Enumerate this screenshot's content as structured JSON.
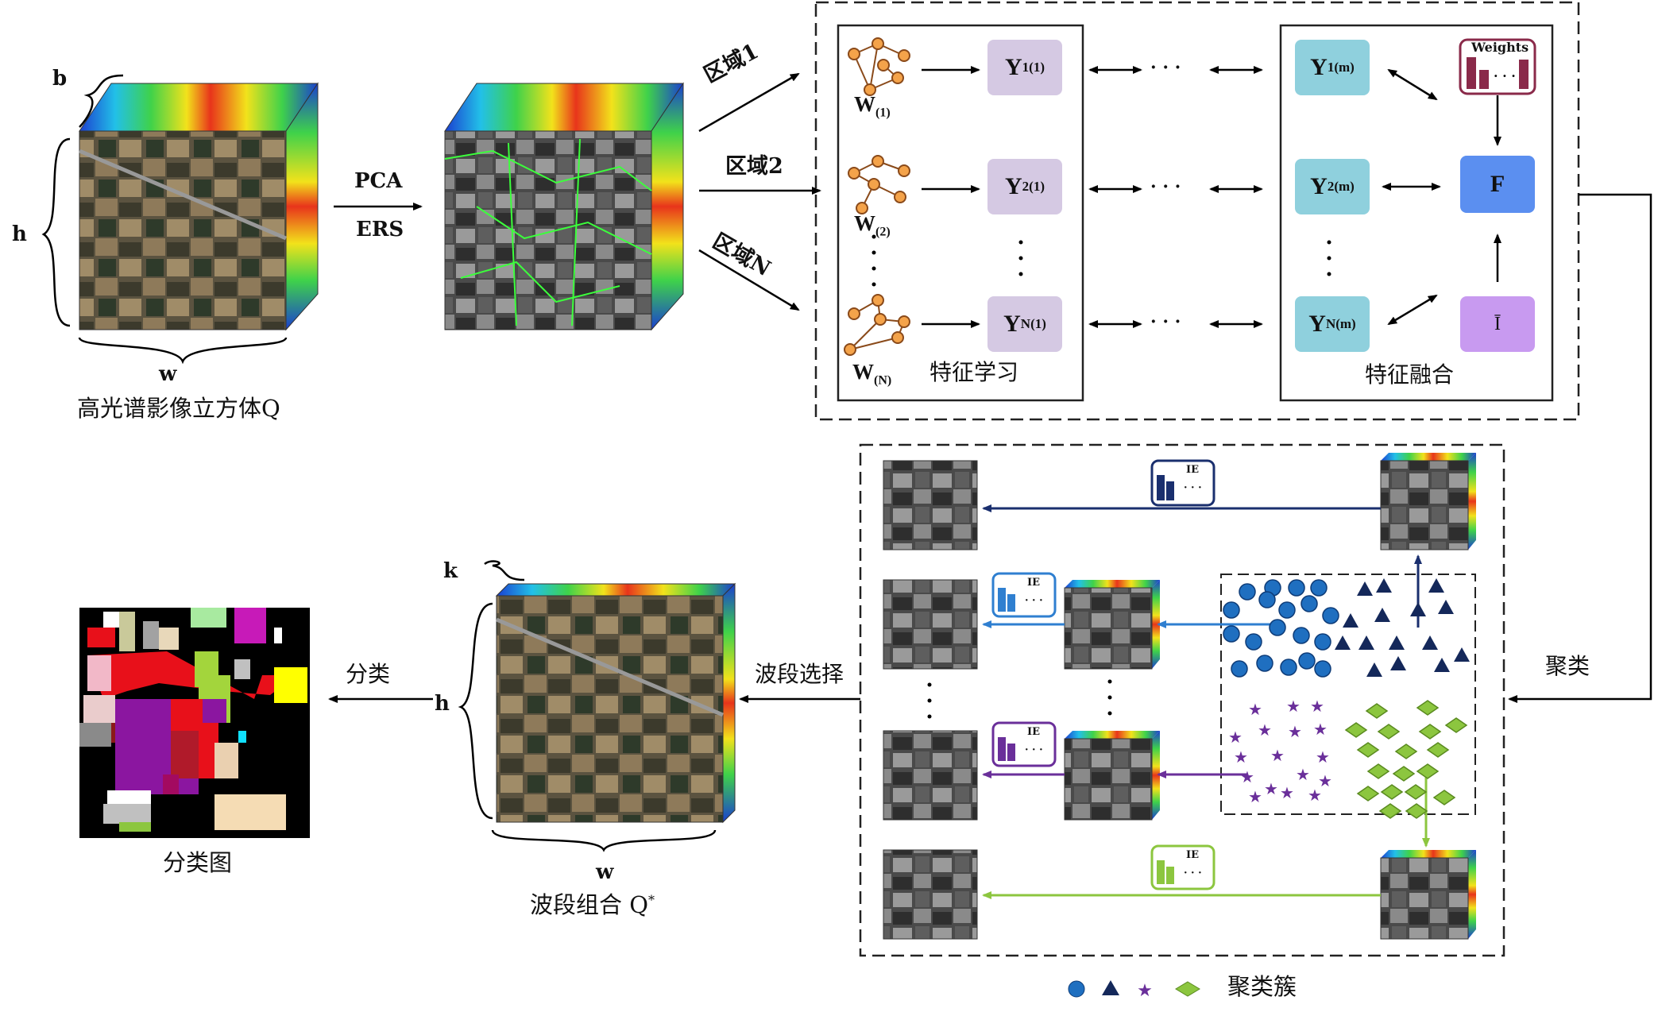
{
  "input": {
    "caption": "高光谱影像立方体Q",
    "dim_b": "b",
    "dim_h": "h",
    "dim_w": "w"
  },
  "step1": {
    "pca": "PCA",
    "ers": "ERS"
  },
  "regions": {
    "r1": "区域1",
    "r2": "区域2",
    "rn": "区域N"
  },
  "feature_learning": {
    "title": "特征学习",
    "w1": "W",
    "w1_sub": "(1)",
    "w2": "W",
    "w2_sub": "(2)",
    "wn": "W",
    "wn_sub": "(N)",
    "y1": "Y",
    "y1_sub": "1",
    "y1_sup": "(1)",
    "y2": "Y",
    "y2_sub": "2",
    "y2_sup": "(1)",
    "yn": "Y",
    "yn_sub": "N",
    "yn_sup": "(1)"
  },
  "feature_fusion": {
    "title": "特征融合",
    "y1": "Y",
    "y1_sub": "1",
    "y1_sup": "(m)",
    "y2": "Y",
    "y2_sub": "2",
    "y2_sup": "(m)",
    "yn": "Y",
    "yn_sub": "N",
    "yn_sup": "(m)",
    "weights": "Weights",
    "f": "F",
    "i": "Ī"
  },
  "ellipsis": "· · ·",
  "cluster_label": "聚类",
  "band_select_label": "波段选择",
  "ie_label": "IE",
  "output": {
    "caption": "波段组合 Q",
    "caption_sup": "*",
    "dim_k": "k",
    "dim_h": "h",
    "dim_w": "w"
  },
  "classify_label": "分类",
  "classmap_caption": "分类图",
  "legend_label": "聚类簇",
  "colors": {
    "circle": "#1f6fc0",
    "triangle": "#14285a",
    "star": "#6a2f9a",
    "diamond": "#8cc63f",
    "ie_navy": "#1a2f6e",
    "ie_blue": "#2f7fd0",
    "ie_purple": "#6a2f9a",
    "ie_green": "#8cc63f",
    "node_purple": "#d5c9e3",
    "node_cyan": "#8fd0dd",
    "node_blue": "#5b8ff0",
    "node_lilac": "#c89af0",
    "weights_border": "#8a2a4a"
  }
}
